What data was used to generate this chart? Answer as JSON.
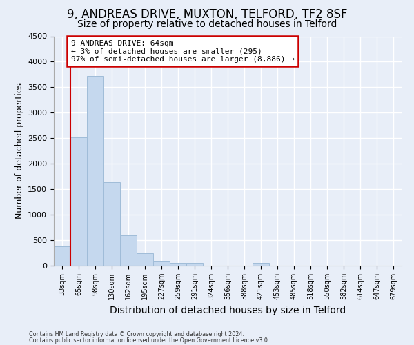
{
  "title1": "9, ANDREAS DRIVE, MUXTON, TELFORD, TF2 8SF",
  "title2": "Size of property relative to detached houses in Telford",
  "xlabel": "Distribution of detached houses by size in Telford",
  "ylabel": "Number of detached properties",
  "footnote1": "Contains HM Land Registry data © Crown copyright and database right 2024.",
  "footnote2": "Contains public sector information licensed under the Open Government Licence v3.0.",
  "bin_labels": [
    "33sqm",
    "65sqm",
    "98sqm",
    "130sqm",
    "162sqm",
    "195sqm",
    "227sqm",
    "259sqm",
    "291sqm",
    "324sqm",
    "356sqm",
    "388sqm",
    "421sqm",
    "453sqm",
    "485sqm",
    "518sqm",
    "550sqm",
    "582sqm",
    "614sqm",
    "647sqm",
    "679sqm"
  ],
  "bar_values": [
    380,
    2520,
    3720,
    1640,
    600,
    240,
    100,
    60,
    50,
    0,
    0,
    0,
    60,
    0,
    0,
    0,
    0,
    0,
    0,
    0,
    0
  ],
  "bar_color": "#c5d8ee",
  "bar_edgecolor": "#a0bcd8",
  "annotation_text_line1": "9 ANDREAS DRIVE: 64sqm",
  "annotation_text_line2": "← 3% of detached houses are smaller (295)",
  "annotation_text_line3": "97% of semi-detached houses are larger (8,886) →",
  "red_color": "#cc0000",
  "ylim": [
    0,
    4500
  ],
  "yticks": [
    0,
    500,
    1000,
    1500,
    2000,
    2500,
    3000,
    3500,
    4000,
    4500
  ],
  "background_color": "#e8eef8",
  "grid_color": "#ffffff",
  "title1_fontsize": 12,
  "title2_fontsize": 10,
  "xlabel_fontsize": 10,
  "ylabel_fontsize": 9
}
